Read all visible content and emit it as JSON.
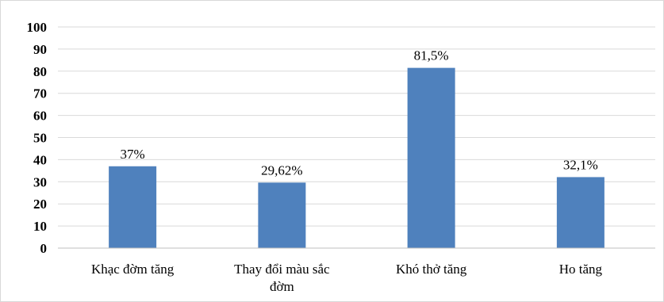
{
  "chart_data": {
    "type": "bar",
    "categories": [
      [
        "Khạc đờm tăng"
      ],
      [
        "Thay đổi màu sắc",
        "đờm"
      ],
      [
        "Khó thở tăng"
      ],
      [
        "Ho tăng"
      ]
    ],
    "values": [
      37,
      29.62,
      81.5,
      32.1
    ],
    "data_labels": [
      "37%",
      "29,62%",
      "81,5%",
      "32,1%"
    ],
    "yticks": [
      0,
      10,
      20,
      30,
      40,
      50,
      60,
      70,
      80,
      90,
      100
    ],
    "ylim": [
      0,
      100
    ],
    "grid": true,
    "legend": false,
    "title": "",
    "xlabel": "",
    "ylabel": "",
    "colors": {
      "bar": "#4f81bd",
      "grid": "#d9d9d9",
      "axis": "#bfbfbf"
    }
  }
}
